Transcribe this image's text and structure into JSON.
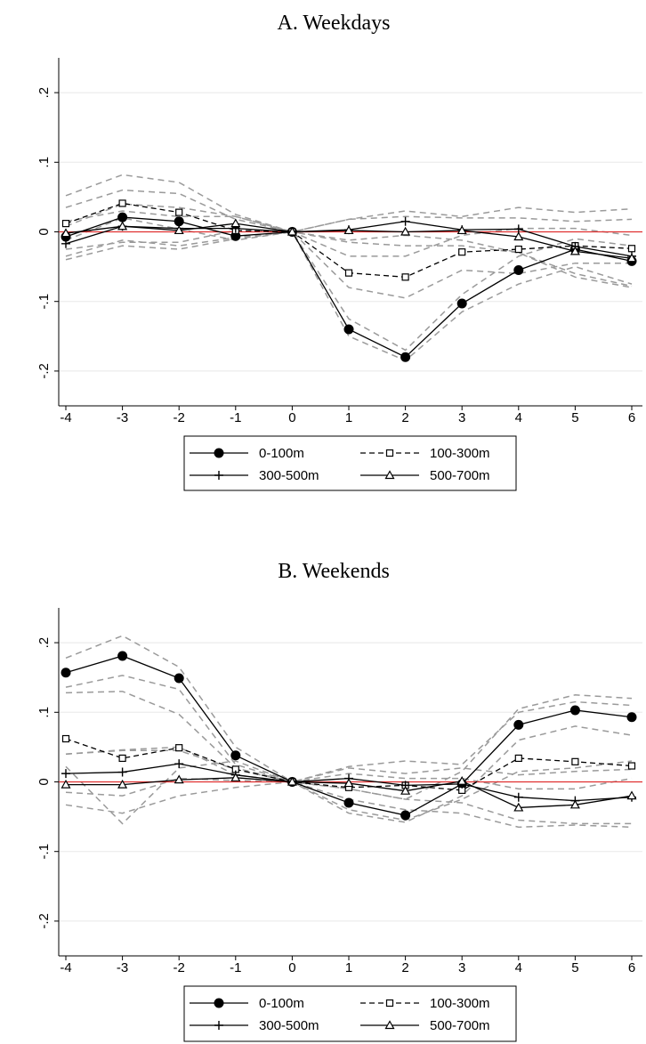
{
  "chart_data": [
    {
      "type": "line",
      "title": "A. Weekdays",
      "x": [
        -4,
        -3,
        -2,
        -1,
        0,
        1,
        2,
        3,
        4,
        5,
        6
      ],
      "ylim": [
        -0.25,
        0.25
      ],
      "yticks": [
        0.2,
        0.1,
        0,
        -0.1,
        -0.2
      ],
      "ytick_labels": [
        ".2",
        ".1",
        "0",
        "-.1",
        "-.2"
      ],
      "grid": true,
      "reference_line": {
        "y": 0,
        "color": "#e03030"
      },
      "legend": {
        "placement": "bottom"
      },
      "series": [
        {
          "name": "0-100m",
          "style": "solid",
          "marker": "filled-circle",
          "values": [
            -0.007,
            0.021,
            0.015,
            -0.006,
            0,
            -0.14,
            -0.18,
            -0.103,
            -0.055,
            -0.025,
            -0.042
          ]
        },
        {
          "name": "100-300m",
          "style": "dashed",
          "marker": "hollow-square",
          "values": [
            0.012,
            0.041,
            0.028,
            0.002,
            0,
            -0.059,
            -0.065,
            -0.029,
            -0.025,
            -0.02,
            -0.024
          ]
        },
        {
          "name": "300-500m",
          "style": "solid",
          "marker": "plus",
          "values": [
            -0.017,
            0.008,
            0.005,
            0.005,
            0,
            0.003,
            0.015,
            0.003,
            0.004,
            -0.021,
            -0.035
          ]
        },
        {
          "name": "500-700m",
          "style": "solid",
          "marker": "hollow-triangle",
          "values": [
            -0.002,
            0.008,
            0.002,
            0.012,
            0,
            0.002,
            0,
            0.002,
            -0.007,
            -0.028,
            -0.038
          ]
        }
      ],
      "ci_bands": [
        [
          0.052,
          0.082,
          0.071,
          0.025,
          0,
          -0.125,
          -0.17,
          -0.09,
          -0.035,
          -0.01,
          -0.02
        ],
        [
          -0.04,
          -0.02,
          -0.025,
          -0.01,
          0,
          -0.15,
          -0.185,
          -0.115,
          -0.075,
          -0.05,
          -0.075
        ],
        [
          0.035,
          0.06,
          0.055,
          0.018,
          0,
          -0.035,
          -0.035,
          -0.005,
          0.005,
          0.005,
          -0.005
        ],
        [
          -0.012,
          0.02,
          0.004,
          -0.012,
          0,
          -0.08,
          -0.095,
          -0.055,
          -0.06,
          -0.045,
          -0.045
        ],
        [
          0.008,
          0.04,
          0.035,
          0.022,
          0,
          0.018,
          0.03,
          0.022,
          0.035,
          0.028,
          0.033
        ],
        [
          -0.035,
          -0.012,
          -0.02,
          -0.008,
          0,
          -0.012,
          -0.005,
          -0.012,
          -0.03,
          -0.06,
          -0.078
        ],
        [
          0.015,
          0.03,
          0.022,
          0.022,
          0,
          0.018,
          0.022,
          0.02,
          0.02,
          0.015,
          0.018
        ],
        [
          -0.025,
          -0.015,
          -0.015,
          0.002,
          0,
          -0.015,
          -0.02,
          -0.02,
          -0.03,
          -0.065,
          -0.08
        ]
      ]
    },
    {
      "type": "line",
      "title": "B. Weekends",
      "x": [
        -4,
        -3,
        -2,
        -1,
        0,
        1,
        2,
        3,
        4,
        5,
        6
      ],
      "ylim": [
        -0.25,
        0.25
      ],
      "yticks": [
        0.2,
        0.1,
        0,
        -0.1,
        -0.2
      ],
      "ytick_labels": [
        ".2",
        ".1",
        "0",
        "-.1",
        "-.2"
      ],
      "grid": true,
      "reference_line": {
        "y": 0,
        "color": "#e03030"
      },
      "legend": {
        "placement": "bottom"
      },
      "series": [
        {
          "name": "0-100m",
          "style": "solid",
          "marker": "filled-circle",
          "values": [
            0.157,
            0.181,
            0.149,
            0.038,
            0,
            -0.03,
            -0.048,
            -0.003,
            0.082,
            0.103,
            0.093
          ]
        },
        {
          "name": "100-300m",
          "style": "dashed",
          "marker": "hollow-square",
          "values": [
            0.062,
            0.034,
            0.049,
            0.018,
            0,
            -0.008,
            -0.005,
            -0.012,
            0.034,
            0.029,
            0.023
          ]
        },
        {
          "name": "300-500m",
          "style": "solid",
          "marker": "plus",
          "values": [
            0.012,
            0.014,
            0.026,
            0.01,
            0,
            0.005,
            -0.005,
            -0.003,
            -0.022,
            -0.027,
            -0.022
          ]
        },
        {
          "name": "500-700m",
          "style": "solid",
          "marker": "hollow-triangle",
          "values": [
            -0.004,
            -0.004,
            0.003,
            0.006,
            0,
            -0.002,
            -0.013,
            0.001,
            -0.037,
            -0.033,
            -0.02
          ]
        }
      ],
      "ci_bands": [
        [
          0.178,
          0.21,
          0.165,
          0.05,
          0,
          -0.01,
          -0.025,
          0.015,
          0.105,
          0.125,
          0.12
        ],
        [
          0.136,
          0.153,
          0.133,
          0.025,
          0,
          -0.045,
          -0.058,
          -0.02,
          0.06,
          0.08,
          0.067
        ],
        [
          0.128,
          0.13,
          0.097,
          0.02,
          0,
          0.022,
          0.03,
          0.025,
          0.1,
          0.115,
          0.11
        ],
        [
          0.04,
          0.046,
          0.05,
          0.01,
          0,
          -0.04,
          -0.055,
          -0.025,
          0.015,
          0.02,
          0.03
        ],
        [
          0.04,
          0.045,
          0.045,
          0.018,
          0,
          0.02,
          0.012,
          0.02,
          0.01,
          0.015,
          0.018
        ],
        [
          -0.015,
          -0.02,
          0.005,
          0.002,
          0,
          -0.01,
          -0.025,
          -0.03,
          -0.055,
          -0.06,
          -0.06
        ],
        [
          0.022,
          -0.06,
          0.02,
          0.03,
          0,
          0.012,
          0.005,
          0.005,
          -0.01,
          -0.01,
          0.005
        ],
        [
          -0.033,
          -0.045,
          -0.02,
          -0.008,
          0,
          -0.025,
          -0.04,
          -0.045,
          -0.065,
          -0.062,
          -0.065
        ]
      ]
    }
  ]
}
